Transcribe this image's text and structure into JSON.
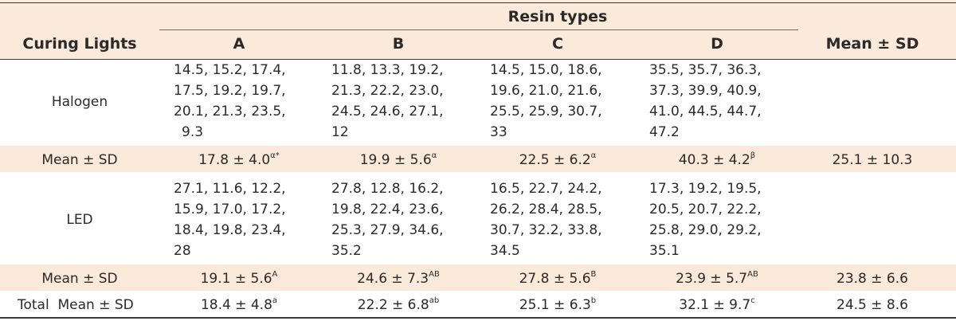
{
  "header": {
    "group_label": "Resin types",
    "row_label": "Curing Lights",
    "columns": [
      "A",
      "B",
      "C",
      "D"
    ],
    "summary_label": "Mean ± SD"
  },
  "halogen": {
    "label": "Halogen",
    "values": [
      [
        "14.5, 15.2, 17.4,",
        "17.5, 19.2, 19.7,",
        "20.1, 21.3, 23.5,",
        "9.3"
      ],
      [
        "11.8, 13.3, 19.2,",
        "21.3, 22.2, 23.0,",
        "24.5, 24.6, 27.1,",
        "12"
      ],
      [
        "14.5, 15.0, 18.6,",
        "19.6, 21.0, 21.6,",
        "25.5, 25.9, 30.7,",
        "33"
      ],
      [
        "35.5, 35.7, 36.3,",
        "37.3, 39.9, 40.9,",
        "41.0, 44.5, 44.7,",
        "47.2"
      ]
    ],
    "mean_label": "Mean ± SD",
    "means": [
      {
        "value": "17.8 ± 4.0",
        "sup": "α*"
      },
      {
        "value": "19.9 ± 5.6",
        "sup": "α"
      },
      {
        "value": "22.5 ± 6.2",
        "sup": "α"
      },
      {
        "value": "40.3 ± 4.2",
        "sup": "β"
      }
    ],
    "overall": "25.1 ± 10.3"
  },
  "led": {
    "label": "LED",
    "values": [
      [
        "27.1, 11.6, 12.2,",
        "15.9, 17.0, 17.2,",
        "18.4, 19.8, 23.4,",
        "28"
      ],
      [
        "27.8, 12.8, 16.2,",
        "19.8, 22.4, 23.6,",
        "25.3, 27.9, 34.6,",
        "35.2"
      ],
      [
        "16.5, 22.7, 24.2,",
        "26.2, 28.4, 28.5,",
        "30.7, 32.2, 33.8,",
        "34.5"
      ],
      [
        "17.3, 19.2, 19.5,",
        "20.5, 20.7, 22.2,",
        "25.8, 29.0, 29.2,",
        "35.1"
      ]
    ],
    "mean_label": "Mean ± SD",
    "means": [
      {
        "value": "19.1 ± 5.6",
        "sup": "A"
      },
      {
        "value": "24.6 ± 7.3",
        "sup": "AB"
      },
      {
        "value": "27.8 ± 5.6",
        "sup": "B"
      },
      {
        "value": "23.9 ± 5.7",
        "sup": "AB"
      }
    ],
    "overall": "23.8 ± 6.6"
  },
  "total": {
    "label": "Total  Mean ± SD",
    "means": [
      {
        "value": "18.4 ± 4.8",
        "sup": "a"
      },
      {
        "value": "22.2 ± 6.8",
        "sup": "ab"
      },
      {
        "value": "25.1 ± 6.3",
        "sup": "b"
      },
      {
        "value": "32.1 ± 9.7",
        "sup": "c"
      }
    ],
    "overall": "24.5 ± 8.6"
  }
}
